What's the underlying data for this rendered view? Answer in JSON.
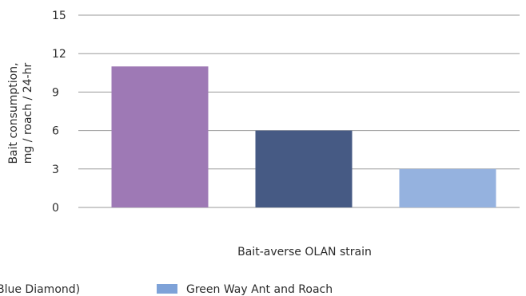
{
  "chart_data": {
    "type": "bar",
    "ylabel_lines": [
      "Bait consumption,",
      "mg / roach / 24-hr"
    ],
    "xlabel": "Bait-averse OLAN strain",
    "ylim": [
      0,
      15
    ],
    "yticks": [
      0,
      3,
      6,
      9,
      12,
      15
    ],
    "grid": true,
    "series": [
      {
        "name": "Blue Diamond)",
        "value": 11,
        "color": "#9e79b5"
      },
      {
        "name": "",
        "value": 6,
        "color": "#465a84"
      },
      {
        "name": "Green Way Ant and Roach",
        "value": 3,
        "color": "#95b2df"
      }
    ],
    "legend_entries": [
      {
        "text": "Blue Diamond)",
        "color": ""
      },
      {
        "text": "Green Way Ant and Roach",
        "color": "#7ea2d8"
      }
    ],
    "colors": {
      "grid": "#9a9a9a",
      "text": "#2b2b2b"
    }
  }
}
